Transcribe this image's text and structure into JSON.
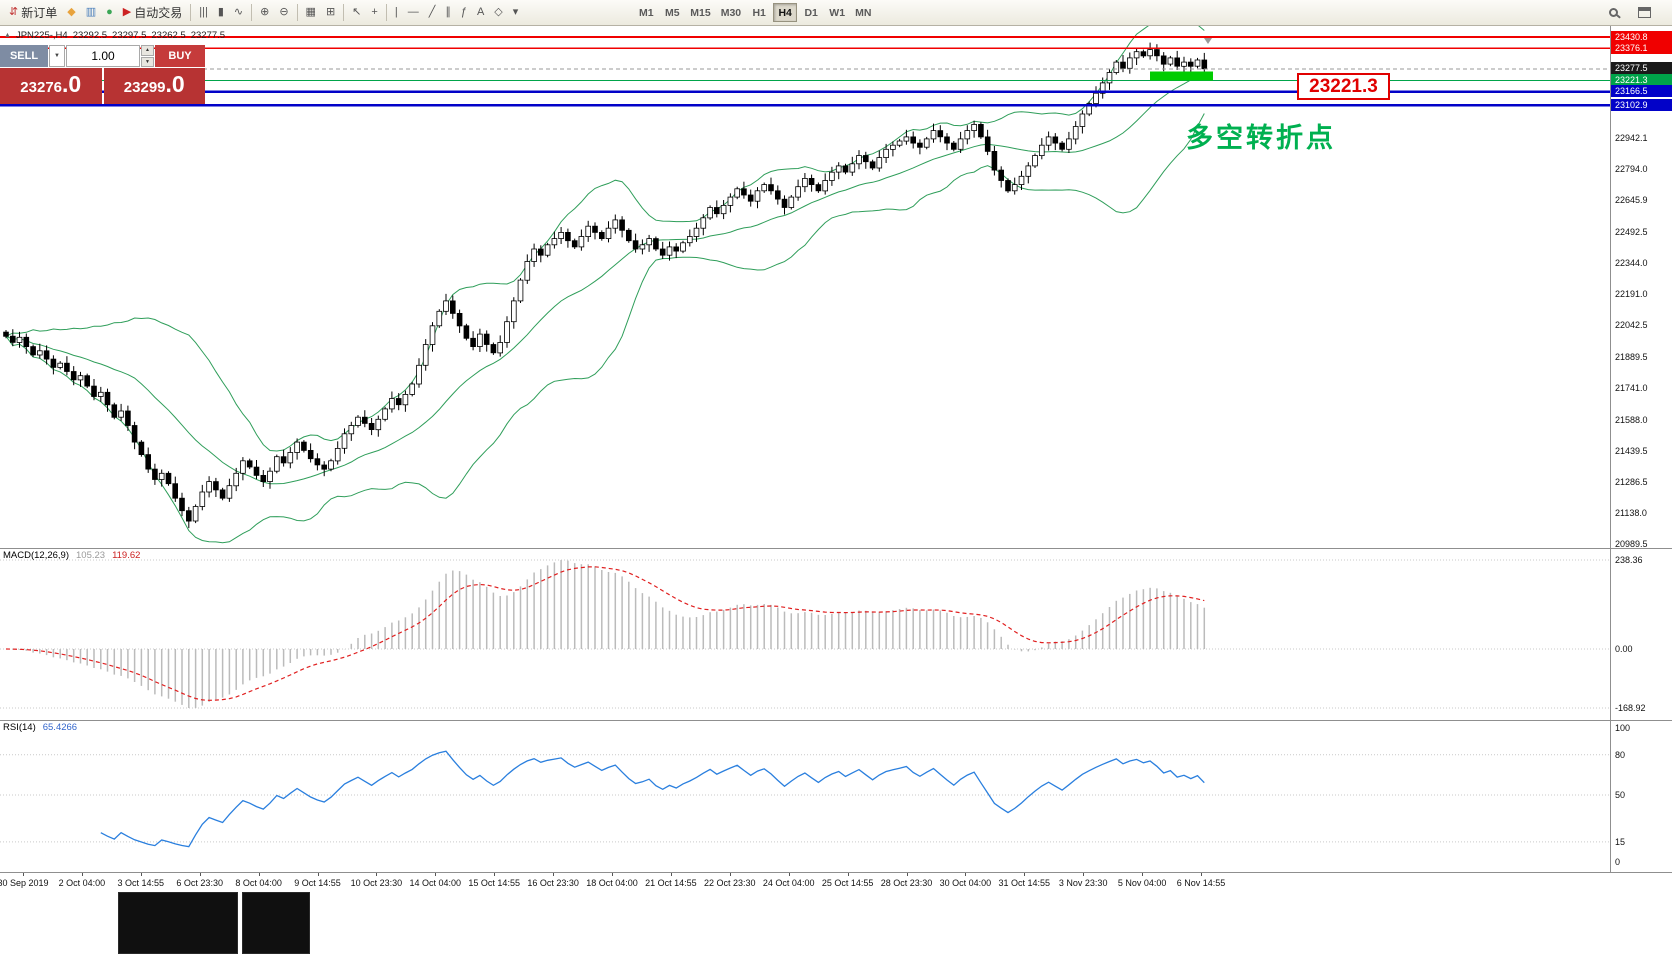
{
  "toolbar": {
    "items": [
      {
        "name": "new-order-button",
        "glyph": "⇵",
        "color": "#c03030",
        "label": "新订单"
      },
      {
        "name": "mql5-market-button",
        "glyph": "◆",
        "color": "#e8a33d"
      },
      {
        "name": "charts-window-button",
        "glyph": "▥",
        "color": "#4a7ebb"
      },
      {
        "name": "news-calendar-button",
        "glyph": "●",
        "color": "#3aa655"
      },
      {
        "name": "auto-trading-button",
        "glyph": "▶",
        "color": "#cc2222",
        "label": "自动交易"
      },
      {
        "sep": true
      },
      {
        "name": "bar-chart-type-button",
        "glyph": "|||"
      },
      {
        "name": "candlestick-chart-type-button",
        "glyph": "▮"
      },
      {
        "name": "line-chart-type-button",
        "glyph": "∿"
      },
      {
        "sep": true
      },
      {
        "name": "zoom-in-button",
        "glyph": "⊕"
      },
      {
        "name": "zoom-out-button",
        "glyph": "⊖"
      },
      {
        "sep": true
      },
      {
        "name": "tile-windows-button",
        "glyph": "▦"
      },
      {
        "name": "new-chart-button",
        "glyph": "⊞"
      },
      {
        "sep": true
      },
      {
        "name": "cursor-button",
        "glyph": "↖"
      },
      {
        "name": "crosshair-button",
        "glyph": "+"
      },
      {
        "sep": true
      },
      {
        "name": "vertical-line-button",
        "glyph": "|"
      },
      {
        "name": "horizontal-line-button",
        "glyph": "—"
      },
      {
        "name": "trendline-button",
        "glyph": "╱"
      },
      {
        "name": "channel-button",
        "glyph": "∥"
      },
      {
        "name": "fibonacci-button",
        "glyph": "ƒ"
      },
      {
        "name": "text-button",
        "glyph": "A"
      },
      {
        "name": "shapes-button",
        "glyph": "◇"
      },
      {
        "name": "objects-dropdown",
        "glyph": "▾"
      }
    ],
    "timeframes": [
      "M1",
      "M5",
      "M15",
      "M30",
      "H1",
      "H4",
      "D1",
      "W1",
      "MN"
    ],
    "active_timeframe": "H4"
  },
  "symbol_header": {
    "symbol": "JPN225-,H4",
    "open": "23292.5",
    "high": "23297.5",
    "low": "23262.5",
    "close": "23277.5"
  },
  "trade_panel": {
    "sell_label": "SELL",
    "buy_label": "BUY",
    "volume": "1.00",
    "sell_big": "23276",
    "sell_pips": ".0",
    "buy_big": "23299",
    "buy_pips": ".0"
  },
  "annotations": {
    "price_callout": "23221.3",
    "turning_point": "多空转折点"
  },
  "levels": [
    {
      "price": 23430.8,
      "color": "#f00000",
      "width": 1.6,
      "label": "23430.8",
      "tag_bg": "#f00000"
    },
    {
      "price": 23376.1,
      "color": "#f00000",
      "width": 1.6,
      "label": "23376.1",
      "tag_bg": "#f00000"
    },
    {
      "price": 23277.5,
      "color": "#9a9a9a",
      "width": 1,
      "dash": true,
      "label": "23277.5",
      "tag_bg": "#1a1a1a"
    },
    {
      "price": 23221.3,
      "color": "#00a44a",
      "width": 1.4,
      "label": "23221.3",
      "tag_bg": "#00a44a"
    },
    {
      "price": 23166.5,
      "color": "#0202c8",
      "width": 2.6,
      "label": "23166.5",
      "tag_bg": "#0202c8"
    },
    {
      "price": 23102.9,
      "color": "#0202c8",
      "width": 2.6,
      "label": "23102.9",
      "tag_bg": "#0202c8"
    }
  ],
  "highlight": {
    "price": 23221.3,
    "x": 1150,
    "w": 63,
    "color": "#00cc00"
  },
  "macd_panel": {
    "name": "MACD(12,26,9)",
    "main_value": "105.23",
    "signal_value": "119.62",
    "axis_labels": [
      "238.36",
      "0.00",
      "-168.92"
    ],
    "axis_values": [
      238.36,
      0,
      -168.92
    ]
  },
  "rsi_panel": {
    "name": "RSI(14)",
    "value": "65.4266",
    "axis_labels": [
      "100",
      "80",
      "50",
      "15",
      "0"
    ],
    "axis_values": [
      100,
      80,
      50,
      15,
      0
    ],
    "level_lines": [
      80,
      50,
      15
    ]
  },
  "chart_data": {
    "type": "candlestick",
    "symbol": "JPN225-",
    "timeframe": "H4",
    "title": "JPN225-,H4 23292.5 23297.5 23262.5 23277.5",
    "y_range": [
      20989.5,
      23430.8
    ],
    "y_tick_labels": [
      22942.1,
      22794.0,
      22645.9,
      22492.5,
      22344.0,
      22191.0,
      22042.5,
      21889.5,
      21741.0,
      21588.0,
      21439.5,
      21286.5,
      21138.0,
      20989.5
    ],
    "x_tick_labels": [
      "30 Sep 2019",
      "2 Oct 04:00",
      "3 Oct 14:55",
      "6 Oct 23:30",
      "8 Oct 04:00",
      "9 Oct 14:55",
      "10 Oct 23:30",
      "14 Oct 04:00",
      "15 Oct 14:55",
      "16 Oct 23:30",
      "18 Oct 04:00",
      "21 Oct 14:55",
      "22 Oct 23:30",
      "24 Oct 04:00",
      "25 Oct 14:55",
      "28 Oct 23:30",
      "30 Oct 04:00",
      "31 Oct 14:55",
      "3 Nov 23:30",
      "5 Nov 04:00",
      "6 Nov 14:55"
    ],
    "indicators": {
      "bollinger_period": 20,
      "macd": [
        12,
        26,
        9
      ],
      "rsi_period": 14
    },
    "colors": {
      "bollinger": "#2f9e5a",
      "bull": "#ffffff",
      "bear": "#000000",
      "macd_hist": "#bbbbbb",
      "macd_signal": "#e02020",
      "rsi": "#2a7fde"
    },
    "closes": [
      21990,
      21960,
      21985,
      21940,
      21900,
      21920,
      21880,
      21840,
      21860,
      21820,
      21780,
      21800,
      21750,
      21700,
      21720,
      21660,
      21600,
      21630,
      21560,
      21480,
      21420,
      21350,
      21300,
      21330,
      21280,
      21210,
      21150,
      21100,
      21170,
      21240,
      21290,
      21250,
      21210,
      21270,
      21330,
      21390,
      21360,
      21320,
      21290,
      21340,
      21410,
      21380,
      21430,
      21480,
      21440,
      21400,
      21370,
      21350,
      21390,
      21450,
      21520,
      21560,
      21600,
      21570,
      21540,
      21590,
      21640,
      21690,
      21660,
      21710,
      21760,
      21850,
      21950,
      22040,
      22110,
      22160,
      22100,
      22040,
      21980,
      21940,
      22000,
      21950,
      21910,
      21960,
      22060,
      22160,
      22260,
      22350,
      22410,
      22380,
      22430,
      22460,
      22490,
      22450,
      22420,
      22470,
      22520,
      22490,
      22460,
      22510,
      22550,
      22500,
      22450,
      22410,
      22430,
      22460,
      22410,
      22380,
      22420,
      22400,
      22440,
      22470,
      22510,
      22560,
      22610,
      22580,
      22620,
      22660,
      22700,
      22670,
      22640,
      22690,
      22720,
      22690,
      22650,
      22610,
      22660,
      22710,
      22750,
      22720,
      22690,
      22740,
      22780,
      22810,
      22780,
      22820,
      22860,
      22830,
      22800,
      22850,
      22890,
      22910,
      22930,
      22950,
      22920,
      22900,
      22940,
      22980,
      22950,
      22920,
      22890,
      22940,
      22980,
      23010,
      22950,
      22880,
      22790,
      22740,
      22690,
      22720,
      22760,
      22810,
      22860,
      22910,
      22950,
      22920,
      22890,
      22940,
      23000,
      23060,
      23110,
      23160,
      23210,
      23260,
      23310,
      23280,
      23330,
      23360,
      23340,
      23370,
      23340,
      23300,
      23330,
      23290,
      23310,
      23290,
      23320,
      23277.5
    ]
  }
}
